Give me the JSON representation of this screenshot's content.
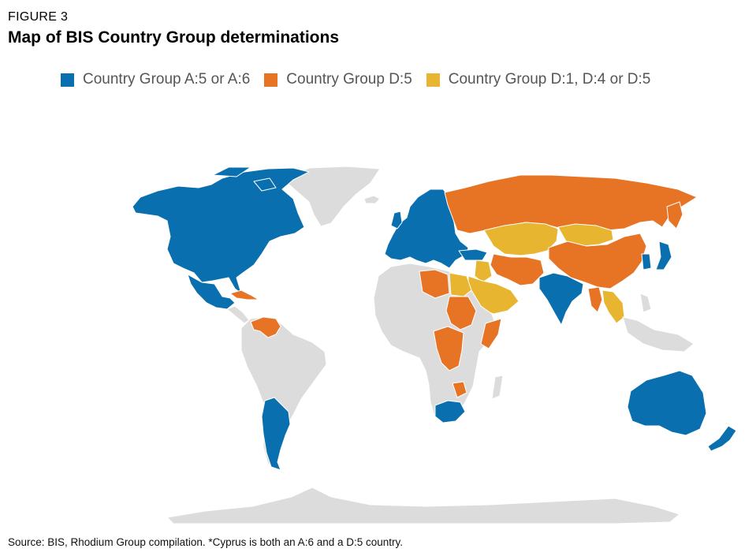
{
  "figure_label": "FIGURE 3",
  "title": "Map of BIS Country Group determinations",
  "legend": [
    {
      "label": "Country Group A:5 or A:6",
      "color": "#0a6fae"
    },
    {
      "label": "Country Group D:5",
      "color": "#e77425"
    },
    {
      "label": "Country Group D:1, D:4 or D:5",
      "color": "#e8b530"
    }
  ],
  "colors": {
    "group_a": "#0a6fae",
    "group_d5": "#e77425",
    "group_d1d4d5": "#e8b530",
    "other": "#dcdcdc",
    "border": "#ffffff"
  },
  "source": "Source: BIS, Rhodium Group compilation. *Cyprus is both an A:6 and a D:5 country."
}
